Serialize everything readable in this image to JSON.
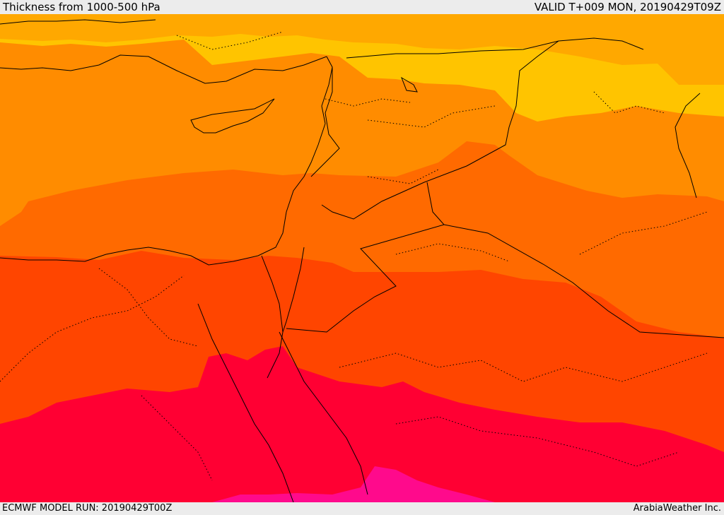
{
  "header": {
    "title": "Thickness from 1000-500 hPa",
    "valid": "VALID T+009 MON, 20190429T09Z"
  },
  "footer": {
    "model_run": "ECMWF MODEL RUN: 20190429T00Z",
    "credit": "ArabiaWeather Inc."
  },
  "palette": {
    "band1": "#ffc400",
    "band2": "#ffa800",
    "band3": "#ff8c00",
    "band4": "#ff6a00",
    "band5": "#ff4500",
    "band6": "#ff0033",
    "band7": "#ff0a8c"
  }
}
